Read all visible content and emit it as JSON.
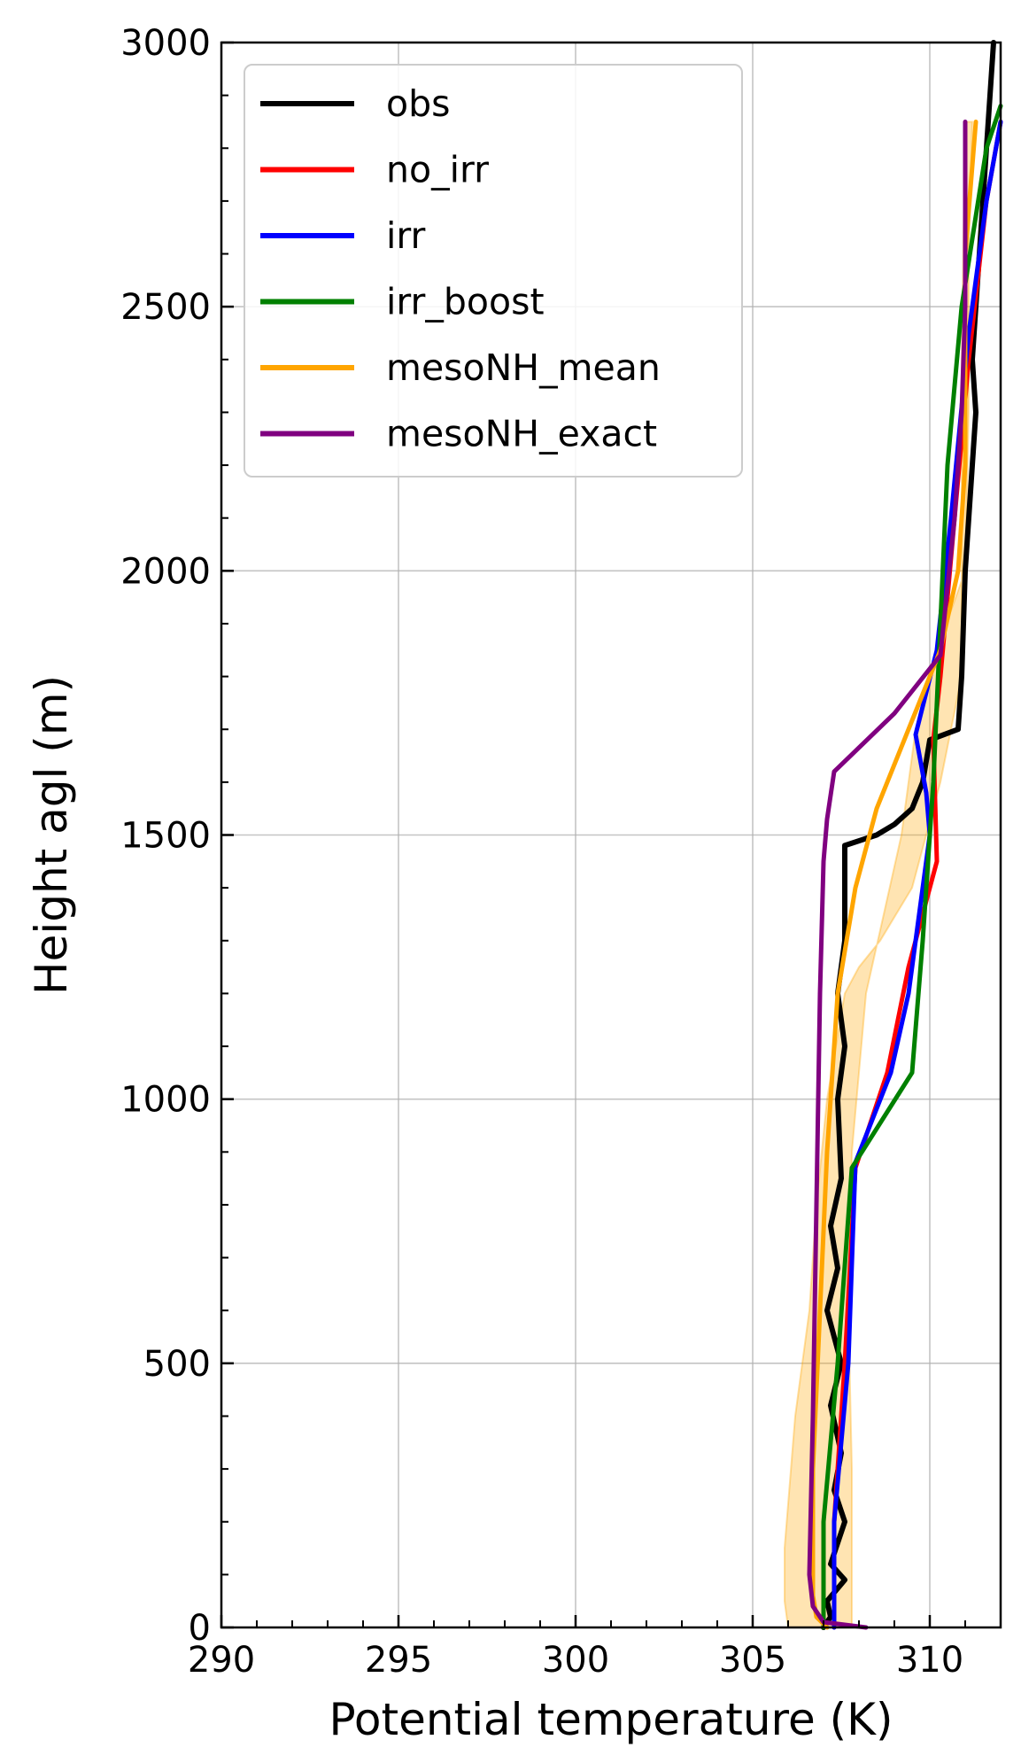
{
  "chart_data": {
    "type": "line",
    "xlabel": "Potential temperature (K)",
    "ylabel": "Height agl (m)",
    "xlim": [
      290,
      312
    ],
    "ylim": [
      0,
      3000
    ],
    "xticks": [
      290,
      295,
      300,
      305,
      310
    ],
    "yticks": [
      0,
      500,
      1000,
      1500,
      2000,
      2500,
      3000
    ],
    "grid": true,
    "legend_position": "upper-left",
    "series": [
      {
        "name": "obs",
        "color": "#000000",
        "points": [
          [
            307.0,
            0
          ],
          [
            307.2,
            20
          ],
          [
            307.1,
            50
          ],
          [
            307.6,
            90
          ],
          [
            307.2,
            120
          ],
          [
            307.6,
            200
          ],
          [
            307.3,
            260
          ],
          [
            307.5,
            330
          ],
          [
            307.2,
            420
          ],
          [
            307.5,
            500
          ],
          [
            307.1,
            600
          ],
          [
            307.4,
            680
          ],
          [
            307.2,
            760
          ],
          [
            307.5,
            850
          ],
          [
            307.4,
            1000
          ],
          [
            307.6,
            1100
          ],
          [
            307.4,
            1200
          ],
          [
            307.6,
            1300
          ],
          [
            307.6,
            1480
          ],
          [
            308.5,
            1500
          ],
          [
            309.0,
            1520
          ],
          [
            309.5,
            1550
          ],
          [
            309.8,
            1600
          ],
          [
            310.0,
            1680
          ],
          [
            310.8,
            1700
          ],
          [
            310.9,
            1800
          ],
          [
            311.0,
            2000
          ],
          [
            311.2,
            2200
          ],
          [
            311.3,
            2300
          ],
          [
            311.2,
            2400
          ],
          [
            311.3,
            2500
          ],
          [
            311.4,
            2600
          ],
          [
            311.5,
            2700
          ],
          [
            311.6,
            2800
          ],
          [
            311.7,
            2900
          ],
          [
            311.8,
            3000
          ]
        ]
      },
      {
        "name": "no_irr",
        "color": "#ff0000",
        "points": [
          [
            307.3,
            0
          ],
          [
            307.3,
            200
          ],
          [
            307.6,
            500
          ],
          [
            307.9,
            870
          ],
          [
            308.8,
            1050
          ],
          [
            309.4,
            1250
          ],
          [
            310.2,
            1450
          ],
          [
            310.1,
            1680
          ],
          [
            310.3,
            1800
          ],
          [
            310.7,
            2100
          ],
          [
            311.1,
            2400
          ],
          [
            311.6,
            2700
          ],
          [
            312.0,
            2850
          ]
        ]
      },
      {
        "name": "irr",
        "color": "#0000ff",
        "points": [
          [
            307.3,
            0
          ],
          [
            307.3,
            200
          ],
          [
            307.7,
            500
          ],
          [
            307.9,
            880
          ],
          [
            308.9,
            1050
          ],
          [
            309.4,
            1200
          ],
          [
            310.0,
            1500
          ],
          [
            309.9,
            1580
          ],
          [
            309.6,
            1690
          ],
          [
            310.2,
            1850
          ],
          [
            310.6,
            2100
          ],
          [
            311.1,
            2450
          ],
          [
            311.6,
            2700
          ],
          [
            312.0,
            2850
          ]
        ]
      },
      {
        "name": "irr_boost",
        "color": "#008000",
        "points": [
          [
            307.0,
            0
          ],
          [
            307.0,
            200
          ],
          [
            307.4,
            500
          ],
          [
            307.8,
            870
          ],
          [
            309.5,
            1050
          ],
          [
            309.8,
            1300
          ],
          [
            310.1,
            1600
          ],
          [
            310.3,
            1900
          ],
          [
            310.5,
            2200
          ],
          [
            310.9,
            2500
          ],
          [
            311.6,
            2800
          ],
          [
            312.0,
            2880
          ]
        ]
      },
      {
        "name": "mesoNH_mean",
        "color": "#ffa500",
        "points": [
          [
            307.1,
            0
          ],
          [
            306.8,
            20
          ],
          [
            306.7,
            60
          ],
          [
            306.7,
            300
          ],
          [
            306.9,
            600
          ],
          [
            307.1,
            900
          ],
          [
            307.4,
            1200
          ],
          [
            307.9,
            1400
          ],
          [
            308.5,
            1550
          ],
          [
            309.4,
            1700
          ],
          [
            310.3,
            1850
          ],
          [
            310.8,
            2000
          ],
          [
            311.0,
            2200
          ],
          [
            311.0,
            2600
          ],
          [
            311.3,
            2850
          ]
        ]
      },
      {
        "name": "mesoNH_exact",
        "color": "#800080",
        "points": [
          [
            308.2,
            0
          ],
          [
            307.0,
            10
          ],
          [
            306.7,
            40
          ],
          [
            306.6,
            100
          ],
          [
            306.7,
            400
          ],
          [
            306.8,
            800
          ],
          [
            306.9,
            1200
          ],
          [
            307.0,
            1450
          ],
          [
            307.1,
            1530
          ],
          [
            307.3,
            1620
          ],
          [
            309.0,
            1730
          ],
          [
            310.3,
            1840
          ],
          [
            310.7,
            2100
          ],
          [
            310.9,
            2300
          ],
          [
            311.0,
            2500
          ],
          [
            311.0,
            2850
          ]
        ]
      }
    ],
    "band": {
      "color": "#ffa500",
      "lower": [
        [
          306.0,
          0
        ],
        [
          305.9,
          50
        ],
        [
          305.9,
          150
        ],
        [
          306.2,
          400
        ],
        [
          306.6,
          600
        ],
        [
          306.8,
          800
        ],
        [
          307.1,
          1000
        ],
        [
          307.6,
          1200
        ],
        [
          308.0,
          1250
        ],
        [
          308.6,
          1300
        ],
        [
          309.5,
          1400
        ],
        [
          310.3,
          1600
        ],
        [
          310.9,
          1800
        ],
        [
          310.9,
          2100
        ],
        [
          310.9,
          2400
        ],
        [
          311.0,
          2850
        ]
      ],
      "upper": [
        [
          307.8,
          0
        ],
        [
          307.8,
          100
        ],
        [
          307.8,
          300
        ],
        [
          307.7,
          600
        ],
        [
          307.8,
          900
        ],
        [
          308.2,
          1200
        ],
        [
          309.2,
          1500
        ],
        [
          309.6,
          1700
        ],
        [
          310.2,
          1850
        ],
        [
          311.0,
          2000
        ],
        [
          311.1,
          2300
        ],
        [
          311.1,
          2600
        ],
        [
          311.2,
          2850
        ]
      ]
    }
  }
}
